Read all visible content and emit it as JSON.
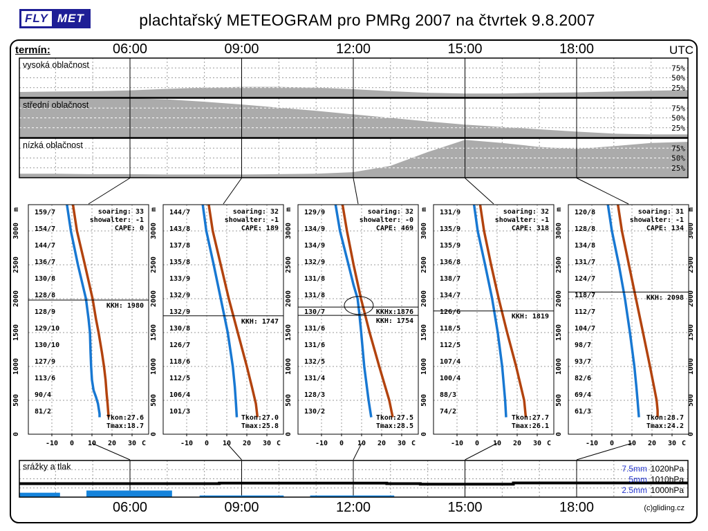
{
  "header": {
    "logo_fly": "FLY",
    "logo_met": "MET",
    "title": "plachtařský METEOGRAM pro PMRg 2007 na čtvrtek 9.8.2007"
  },
  "top_axis": {
    "label": "termín:",
    "times": [
      "06:00",
      "09:00",
      "12:00",
      "15:00",
      "18:00"
    ],
    "unit": "UTC"
  },
  "bottom_axis": {
    "times": [
      "06:00",
      "09:00",
      "12:00",
      "15:00",
      "18:00"
    ],
    "copyright": "(c)gliding.cz"
  },
  "colors": {
    "temperature_red": "#B2430E",
    "dewpoint_blue": "#1878D2",
    "precip_blue": "#1583DB",
    "cloud_gray": "#ABABAB",
    "legend_blue": "#2233CC",
    "logo_navy": "#1E1E96",
    "grid_gray": "#999999"
  },
  "chart_data": {
    "clouds": {
      "type": "area",
      "hours": [
        3,
        4,
        5,
        6,
        7,
        8,
        9,
        10,
        11,
        12,
        13,
        14,
        15,
        16,
        17,
        18,
        19,
        20,
        21
      ],
      "pct_labels": [
        "75%",
        "50%",
        "25%"
      ],
      "panels": [
        {
          "name": "vysoka-oblacnost",
          "title": "vysoká oblačnost",
          "values_pct": [
            14,
            15,
            16,
            18,
            22,
            25,
            27,
            27,
            25,
            21,
            16,
            12,
            10,
            10,
            12,
            13,
            15,
            17,
            19
          ]
        },
        {
          "name": "stredni-oblacnost",
          "title": "střední oblačnost",
          "values_pct": [
            100,
            100,
            100,
            100,
            97,
            91,
            84,
            76,
            68,
            59,
            50,
            41,
            33,
            27,
            21,
            15,
            10,
            8,
            8
          ]
        },
        {
          "name": "nizka-oblacnost",
          "title": "nízká oblačnost",
          "values_pct": [
            10,
            10,
            9,
            9,
            8,
            8,
            8,
            9,
            10,
            14,
            30,
            65,
            96,
            88,
            78,
            73,
            80,
            88,
            91
          ]
        }
      ]
    },
    "soundings": {
      "type": "line",
      "unit": "m",
      "x_ticks": [
        "-10",
        "0",
        "10",
        "20",
        "30",
        "C"
      ],
      "alt_ticks": [
        "3000",
        "2500",
        "2000",
        "1500",
        "1000",
        "500",
        "0"
      ],
      "alt_values": [
        3000,
        2500,
        2000,
        1500,
        1000,
        500,
        0
      ],
      "panels": [
        {
          "soaring_line": "soaring: 33",
          "showalter_line": "showalter: -1",
          "cape_line": "CAPE:  0",
          "kkh_m": 1980,
          "kkh_label": "KKH: 1980",
          "tkon_label": "Tkon:27.6",
          "tmax_label": "Tmax:18.7",
          "winds": [
            "159/7",
            "154/7",
            "144/7",
            "136/7",
            "130/8",
            "128/8",
            "128/9",
            "129/10",
            "130/10",
            "127/9",
            "113/6",
            " 90/4",
            " 81/2"
          ],
          "temp_profile": [
            [
              3390,
              0.5
            ],
            [
              3000,
              2.5
            ],
            [
              2500,
              6.5
            ],
            [
              2000,
              10.3
            ],
            [
              1700,
              12
            ],
            [
              1500,
              13.3
            ],
            [
              1200,
              15
            ],
            [
              1000,
              16
            ],
            [
              800,
              16.8
            ],
            [
              600,
              17.3
            ],
            [
              450,
              17.8
            ],
            [
              250,
              18.3
            ]
          ],
          "dew_profile": [
            [
              3390,
              -2.5
            ],
            [
              3000,
              -0.5
            ],
            [
              2500,
              3
            ],
            [
              2000,
              7
            ],
            [
              1700,
              8.3
            ],
            [
              1500,
              9
            ],
            [
              1200,
              9.3
            ],
            [
              1000,
              9.6
            ],
            [
              800,
              10
            ],
            [
              650,
              10.8
            ],
            [
              550,
              12
            ],
            [
              450,
              13
            ],
            [
              300,
              13.8
            ],
            [
              250,
              13.8
            ]
          ]
        },
        {
          "soaring_line": "soaring: 32",
          "showalter_line": "showalter: -1",
          "cape_line": "CAPE: 189",
          "kkh_m": 1747,
          "kkh_label": "KKH: 1747",
          "tkon_label": "Tkon:27.0",
          "tmax_label": "Tmax:25.8",
          "winds": [
            "144/7",
            "143/8",
            "137/8",
            "135/8",
            "133/9",
            "132/9",
            "132/9",
            "130/8",
            "126/7",
            "118/6",
            "112/5",
            "106/4",
            "101/3"
          ],
          "temp_profile": [
            [
              3390,
              1
            ],
            [
              3000,
              3
            ],
            [
              2500,
              7
            ],
            [
              2000,
              11
            ],
            [
              1500,
              15.5
            ],
            [
              1000,
              20
            ],
            [
              700,
              22.5
            ],
            [
              450,
              24.5
            ],
            [
              250,
              25.3
            ]
          ],
          "dew_profile": [
            [
              3390,
              -2
            ],
            [
              3000,
              -0.2
            ],
            [
              2500,
              3.5
            ],
            [
              2000,
              7
            ],
            [
              1500,
              10.5
            ],
            [
              1000,
              13
            ],
            [
              700,
              14
            ],
            [
              450,
              14.6
            ],
            [
              250,
              15
            ]
          ]
        },
        {
          "soaring_line": "soaring: 32",
          "showalter_line": "showalter: -0",
          "cape_line": "CAPE: 469",
          "kkh_m": 1754,
          "kkh_label": "KKH: 1754",
          "kkhx_m": 1876,
          "kkhx_label": "KKHx:1876",
          "tkon_label": "Tkon:27.5",
          "tmax_label": "Tmax:28.5",
          "ellipse": {
            "temp_c": 8.6,
            "alt_m": 1900
          },
          "winds": [
            "129/9",
            "134/9",
            "134/9",
            "132/9",
            "131/8",
            "131/8",
            "130/7",
            "131/6",
            "131/6",
            "132/5",
            "131/4",
            "128/3",
            "130/2"
          ],
          "temp_profile": [
            [
              3390,
              0.5
            ],
            [
              3000,
              2.7
            ],
            [
              2500,
              6
            ],
            [
              2000,
              9.7
            ],
            [
              1500,
              14
            ],
            [
              1000,
              18.8
            ],
            [
              500,
              23.8
            ],
            [
              250,
              25.5
            ]
          ],
          "dew_profile": [
            [
              3390,
              -3
            ],
            [
              3000,
              -0.8
            ],
            [
              2500,
              3.5
            ],
            [
              2200,
              6
            ],
            [
              2000,
              8
            ],
            [
              1800,
              8.8
            ],
            [
              1500,
              9.8
            ],
            [
              1000,
              11.3
            ],
            [
              500,
              13.5
            ],
            [
              250,
              14.8
            ]
          ]
        },
        {
          "soaring_line": "soaring: 32",
          "showalter_line": "showalter: -1",
          "cape_line": "CAPE: 318",
          "kkh_m": 1819,
          "kkh_label": "KKH: 1819",
          "tkon_label": "Tkon:27.7",
          "tmax_label": "Tmax:26.1",
          "winds": [
            "131/9",
            "135/9",
            "135/9",
            "136/8",
            "138/7",
            "134/7",
            "126/6",
            "118/5",
            "112/5",
            "107/4",
            "100/4",
            " 88/3",
            " 74/2"
          ],
          "temp_profile": [
            [
              3390,
              1.5
            ],
            [
              3000,
              3.5
            ],
            [
              2500,
              7
            ],
            [
              2000,
              10.8
            ],
            [
              1500,
              15
            ],
            [
              1000,
              19.5
            ],
            [
              500,
              23.5
            ],
            [
              250,
              24.3
            ]
          ],
          "dew_profile": [
            [
              3390,
              -1.5
            ],
            [
              3000,
              0.3
            ],
            [
              2500,
              4
            ],
            [
              2000,
              7.5
            ],
            [
              1500,
              10.3
            ],
            [
              1000,
              12.5
            ],
            [
              500,
              14
            ],
            [
              250,
              14.5
            ]
          ]
        },
        {
          "soaring_line": "soaring: 31",
          "showalter_line": "showalter: -1",
          "cape_line": "CAPE: 134",
          "kkh_m": 2098,
          "kkh_label": "KKH: 2098",
          "tkon_label": "Tkon:28.7",
          "tmax_label": "Tmax:24.2",
          "winds": [
            "120/8",
            "128/8",
            "134/8",
            "131/7",
            "124/7",
            "118/7",
            "112/7",
            "104/7",
            " 98/7",
            " 93/7",
            " 82/6",
            " 69/4",
            " 61/3"
          ],
          "temp_profile": [
            [
              3390,
              3
            ],
            [
              3000,
              5
            ],
            [
              2500,
              8.5
            ],
            [
              2000,
              12
            ],
            [
              1500,
              15.5
            ],
            [
              1000,
              19
            ],
            [
              700,
              21
            ],
            [
              500,
              22.3
            ],
            [
              350,
              22.8
            ],
            [
              250,
              22.8
            ]
          ],
          "dew_profile": [
            [
              3390,
              -2
            ],
            [
              3000,
              0
            ],
            [
              2500,
              3.5
            ],
            [
              2000,
              6.5
            ],
            [
              1500,
              9
            ],
            [
              1000,
              11.2
            ],
            [
              700,
              12.2
            ],
            [
              500,
              12.8
            ],
            [
              250,
              13.5
            ]
          ]
        }
      ]
    },
    "precip": {
      "type": "bar+line",
      "title": "srážky a tlak",
      "legend": [
        {
          "mm": "7.5mm",
          "hpa": "1020hPa"
        },
        {
          "mm": "5mm",
          "hpa": "1010hPa"
        },
        {
          "mm": "2.5mm",
          "hpa": "1000hPa"
        }
      ],
      "bars": [
        {
          "h_start": 3,
          "h_end": 4.12,
          "mm": 1.2
        },
        {
          "h_start": 4.83,
          "h_end": 7.13,
          "mm": 1.8
        },
        {
          "h_start": 7.87,
          "h_end": 10.13,
          "mm": 0.45
        },
        {
          "h_start": 10.84,
          "h_end": 13.1,
          "mm": 0.45
        }
      ],
      "pressure_hpa": [
        [
          3,
          1004.7
        ],
        [
          8.4,
          1004.7
        ],
        [
          8.4,
          1005.3
        ],
        [
          12.9,
          1005.3
        ],
        [
          12.9,
          1004.7
        ],
        [
          13.8,
          1004.7
        ],
        [
          13.8,
          1004.2
        ],
        [
          16.3,
          1004.2
        ],
        [
          16.3,
          1005.5
        ],
        [
          21,
          1005.5
        ]
      ]
    }
  }
}
